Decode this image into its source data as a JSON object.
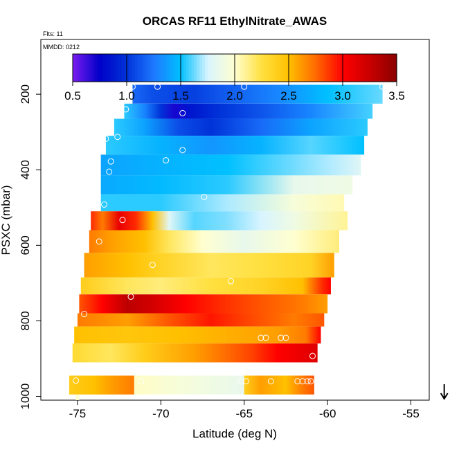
{
  "chart_data": {
    "type": "heatmap",
    "title": "ORCAS RF11 EthylNitrate_AWAS",
    "flights_note": "Flts: 11",
    "date_note": "MMDD: 0212",
    "xlabel": "Latitude (deg N)",
    "ylabel": "PSXC (mbar)",
    "xlim": [
      -77.2,
      -53.9
    ],
    "ylim": [
      1010,
      55
    ],
    "x_ticks": [
      -75,
      -70,
      -65,
      -60,
      -55
    ],
    "x_tick_labels": [
      "-75",
      "-70",
      "-65",
      "-60",
      "-55"
    ],
    "y_ticks": [
      200,
      400,
      600,
      800,
      1000
    ],
    "y_tick_labels": [
      "200",
      "400",
      "600",
      "800",
      "1000"
    ],
    "colorbar": {
      "range": [
        0.5,
        3.5
      ],
      "ticks": [
        0.5,
        1.0,
        1.5,
        2.0,
        2.5,
        3.0,
        3.5
      ],
      "tick_labels": [
        "0.5",
        "1.0",
        "1.5",
        "2.0",
        "2.5",
        "3.0",
        "3.5"
      ],
      "palette": [
        "#7a1cf0",
        "#0000c8",
        "#0032d8",
        "#1e78ff",
        "#00c0ff",
        "#d8f4ff",
        "#ffffd0",
        "#ffe040",
        "#ffc000",
        "#ff6a00",
        "#ff0000",
        "#c80000",
        "#8b0000"
      ]
    },
    "bands": [
      {
        "p_top": 175,
        "p_bot": 225,
        "lat_start": -71.7,
        "lat_end": -56.7,
        "stops": [
          [
            -71.7,
            1.2
          ],
          [
            -70.5,
            1.1
          ],
          [
            -68,
            1.05
          ],
          [
            -66,
            1.15
          ],
          [
            -63,
            1.3
          ],
          [
            -60,
            1.5
          ],
          [
            -56.7,
            1.62
          ]
        ]
      },
      {
        "p_top": 225,
        "p_bot": 265,
        "lat_start": -72.2,
        "lat_end": -57.3,
        "stops": [
          [
            -72.2,
            1.55
          ],
          [
            -71,
            1.3
          ],
          [
            -70,
            1.0
          ],
          [
            -69.2,
            0.7
          ],
          [
            -68.3,
            0.85
          ],
          [
            -66.5,
            1.0
          ],
          [
            -64,
            1.12
          ],
          [
            -61,
            1.3
          ],
          [
            -57.3,
            1.58
          ]
        ]
      },
      {
        "p_top": 265,
        "p_bot": 310,
        "lat_start": -72.8,
        "lat_end": -57.6,
        "stops": [
          [
            -72.8,
            1.55
          ],
          [
            -71,
            1.4
          ],
          [
            -69,
            1.1
          ],
          [
            -67,
            1.0
          ],
          [
            -64,
            1.2
          ],
          [
            -61,
            1.4
          ],
          [
            -57.6,
            1.55
          ]
        ]
      },
      {
        "p_top": 310,
        "p_bot": 360,
        "lat_start": -73.3,
        "lat_end": -57.8,
        "stops": [
          [
            -73.3,
            1.55
          ],
          [
            -70,
            1.45
          ],
          [
            -67,
            1.35
          ],
          [
            -64,
            1.45
          ],
          [
            -61,
            1.6
          ],
          [
            -57.8,
            1.5
          ]
        ]
      },
      {
        "p_top": 360,
        "p_bot": 415,
        "lat_start": -73.6,
        "lat_end": -58.0,
        "stops": [
          [
            -73.6,
            1.4
          ],
          [
            -70,
            1.45
          ],
          [
            -66,
            1.5
          ],
          [
            -63,
            1.6
          ],
          [
            -60,
            1.7
          ],
          [
            -58,
            1.8
          ]
        ]
      },
      {
        "p_top": 415,
        "p_bot": 465,
        "lat_start": -73.6,
        "lat_end": -58.5,
        "stops": [
          [
            -73.6,
            1.42
          ],
          [
            -70,
            1.48
          ],
          [
            -66,
            1.55
          ],
          [
            -62,
            1.85
          ],
          [
            -58.5,
            1.9
          ]
        ]
      },
      {
        "p_top": 465,
        "p_bot": 510,
        "lat_start": -73.6,
        "lat_end": -59.0,
        "stops": [
          [
            -73.6,
            1.55
          ],
          [
            -70,
            1.55
          ],
          [
            -66,
            1.7
          ],
          [
            -62,
            1.95
          ],
          [
            -59,
            2.05
          ]
        ]
      },
      {
        "p_top": 510,
        "p_bot": 560,
        "lat_start": -74.2,
        "lat_end": -58.8,
        "stops": [
          [
            -74.2,
            2.9
          ],
          [
            -73.5,
            2.7
          ],
          [
            -72.5,
            3.1
          ],
          [
            -71.5,
            2.9
          ],
          [
            -70.5,
            2.5
          ],
          [
            -69.5,
            1.8
          ],
          [
            -68,
            1.6
          ],
          [
            -66,
            1.65
          ],
          [
            -64,
            1.75
          ],
          [
            -62,
            1.9
          ],
          [
            -58.8,
            2.1
          ]
        ]
      },
      {
        "p_top": 560,
        "p_bot": 620,
        "lat_start": -74.3,
        "lat_end": -59.3,
        "stops": [
          [
            -74.3,
            2.7
          ],
          [
            -73,
            2.6
          ],
          [
            -71,
            2.5
          ],
          [
            -69.5,
            2.2
          ],
          [
            -67.5,
            2.0
          ],
          [
            -65,
            1.85
          ],
          [
            -62,
            2.0
          ],
          [
            -59.3,
            2.15
          ]
        ]
      },
      {
        "p_top": 620,
        "p_bot": 685,
        "lat_start": -74.6,
        "lat_end": -59.6,
        "stops": [
          [
            -74.6,
            2.6
          ],
          [
            -72,
            2.5
          ],
          [
            -70,
            2.35
          ],
          [
            -67,
            2.2
          ],
          [
            -64,
            2.25
          ],
          [
            -61,
            2.35
          ],
          [
            -59.6,
            2.6
          ]
        ]
      },
      {
        "p_top": 685,
        "p_bot": 730,
        "lat_start": -74.8,
        "lat_end": -59.8,
        "stops": [
          [
            -74.8,
            2.4
          ],
          [
            -72,
            2.2
          ],
          [
            -70,
            2.15
          ],
          [
            -67,
            2.25
          ],
          [
            -64,
            2.35
          ],
          [
            -61.5,
            2.5
          ],
          [
            -60.3,
            2.9
          ],
          [
            -59.8,
            3.0
          ]
        ]
      },
      {
        "p_top": 730,
        "p_bot": 780,
        "lat_start": -74.9,
        "lat_end": -60.0,
        "stops": [
          [
            -74.9,
            2.8
          ],
          [
            -73.5,
            3.0
          ],
          [
            -72,
            3.3
          ],
          [
            -70.5,
            3.2
          ],
          [
            -68.5,
            3.0
          ],
          [
            -66.5,
            2.9
          ],
          [
            -64,
            2.8
          ],
          [
            -61.5,
            2.7
          ],
          [
            -60,
            2.6
          ]
        ]
      },
      {
        "p_top": 780,
        "p_bot": 815,
        "lat_start": -75.0,
        "lat_end": -60.2,
        "stops": [
          [
            -75,
            2.7
          ],
          [
            -72,
            2.6
          ],
          [
            -69.5,
            2.8
          ],
          [
            -67,
            2.95
          ],
          [
            -65,
            2.85
          ],
          [
            -62,
            2.7
          ],
          [
            -60.2,
            2.8
          ]
        ]
      },
      {
        "p_top": 815,
        "p_bot": 860,
        "lat_start": -75.2,
        "lat_end": -60.4,
        "stops": [
          [
            -75.2,
            2.5
          ],
          [
            -72,
            2.45
          ],
          [
            -69,
            2.5
          ],
          [
            -66,
            2.55
          ],
          [
            -63,
            2.6
          ],
          [
            -61.3,
            2.7
          ],
          [
            -60.4,
            3.0
          ]
        ]
      },
      {
        "p_top": 860,
        "p_bot": 910,
        "lat_start": -75.3,
        "lat_end": -60.6,
        "stops": [
          [
            -75.3,
            2.3
          ],
          [
            -73,
            2.2
          ],
          [
            -71,
            2.4
          ],
          [
            -68,
            2.6
          ],
          [
            -66,
            2.75
          ],
          [
            -64.5,
            2.85
          ],
          [
            -63,
            3.0
          ],
          [
            -61.5,
            3.1
          ],
          [
            -60.6,
            3.15
          ]
        ]
      },
      {
        "p_top": 945,
        "p_bot": 995,
        "lat_start": -75.5,
        "lat_end": -71.6,
        "stops": [
          [
            -75.5,
            2.4
          ],
          [
            -74,
            2.5
          ],
          [
            -73,
            2.6
          ],
          [
            -71.6,
            2.7
          ]
        ]
      },
      {
        "p_top": 945,
        "p_bot": 995,
        "lat_start": -71.6,
        "lat_end": -65.0,
        "stops": [
          [
            -71.6,
            2.02
          ],
          [
            -69,
            1.95
          ],
          [
            -67,
            1.9
          ],
          [
            -65,
            1.85
          ]
        ]
      },
      {
        "p_top": 945,
        "p_bot": 995,
        "lat_start": -65.0,
        "lat_end": -60.8,
        "stops": [
          [
            -65,
            2.4
          ],
          [
            -64,
            2.6
          ],
          [
            -62.5,
            2.5
          ],
          [
            -61.5,
            2.7
          ],
          [
            -60.8,
            2.8
          ]
        ]
      },
      {
        "p_top": 995,
        "p_bot": 1010,
        "lat_start": -75.1,
        "lat_end": -74.9,
        "stops": [
          [
            -75.1,
            2.0
          ],
          [
            -74.9,
            2.0
          ]
        ]
      }
    ],
    "sample_points": [
      {
        "lat": -71.7,
        "p": 180
      },
      {
        "lat": -70.2,
        "p": 180
      },
      {
        "lat": -65.0,
        "p": 180
      },
      {
        "lat": -56.7,
        "p": 180
      },
      {
        "lat": -72.1,
        "p": 240
      },
      {
        "lat": -68.7,
        "p": 250
      },
      {
        "lat": -73.3,
        "p": 318
      },
      {
        "lat": -72.6,
        "p": 313
      },
      {
        "lat": -68.7,
        "p": 348
      },
      {
        "lat": -73.0,
        "p": 378
      },
      {
        "lat": -69.7,
        "p": 375
      },
      {
        "lat": -73.1,
        "p": 405
      },
      {
        "lat": -67.4,
        "p": 472
      },
      {
        "lat": -73.4,
        "p": 492
      },
      {
        "lat": -72.3,
        "p": 533
      },
      {
        "lat": -73.7,
        "p": 590
      },
      {
        "lat": -70.5,
        "p": 652
      },
      {
        "lat": -65.8,
        "p": 695
      },
      {
        "lat": -71.8,
        "p": 736
      },
      {
        "lat": -74.6,
        "p": 782
      },
      {
        "lat": -64.0,
        "p": 845
      },
      {
        "lat": -63.7,
        "p": 845
      },
      {
        "lat": -62.8,
        "p": 845
      },
      {
        "lat": -62.5,
        "p": 845
      },
      {
        "lat": -60.9,
        "p": 893
      },
      {
        "lat": -75.1,
        "p": 958
      },
      {
        "lat": -71.2,
        "p": 960
      },
      {
        "lat": -65.2,
        "p": 960
      },
      {
        "lat": -64.9,
        "p": 960
      },
      {
        "lat": -63.4,
        "p": 960
      },
      {
        "lat": -61.8,
        "p": 960
      },
      {
        "lat": -61.5,
        "p": 960
      },
      {
        "lat": -61.2,
        "p": 960
      },
      {
        "lat": -61.0,
        "p": 960
      }
    ],
    "direction_arrow": {
      "lat": -53.0,
      "direction": "down"
    }
  }
}
